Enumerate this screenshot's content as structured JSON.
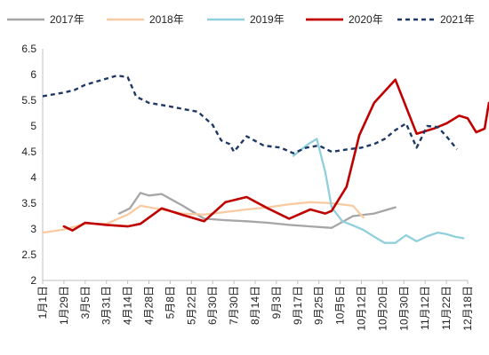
{
  "chart_data": {
    "type": "line",
    "title": "",
    "xlabel": "",
    "ylabel": "",
    "ylim": [
      2,
      6.5
    ],
    "yticks": [
      "6.5",
      "6",
      "5.5",
      "5",
      "4.5",
      "4",
      "3.5",
      "3",
      "2.5",
      "2"
    ],
    "categories": [
      "1月1日",
      "1月29日",
      "3月5日",
      "3月31日",
      "4月14日",
      "4月28日",
      "5月8日",
      "5月22日",
      "6月30日",
      "7月30日",
      "8月14日",
      "9月3日",
      "9月17日",
      "9月25日",
      "10月5日",
      "10月12日",
      "10月20日",
      "10月30日",
      "11月12日",
      "11月22日",
      "12月18日"
    ],
    "grid": false,
    "legend_position": "top",
    "series": [
      {
        "name": "2017年",
        "color": "#a6a6a6",
        "dash": "solid",
        "x": [
          3.6,
          4.1,
          4.6,
          5.0,
          5.6,
          6.6,
          7.6,
          8.6,
          9.6,
          10.6,
          11.6,
          12.6,
          13.6,
          14.6,
          15.6,
          16.6
        ],
        "y": [
          3.3,
          3.4,
          3.7,
          3.65,
          3.68,
          3.45,
          3.2,
          3.17,
          3.15,
          3.12,
          3.08,
          3.05,
          3.02,
          3.25,
          3.3,
          3.42
        ]
      },
      {
        "name": "2018年",
        "color": "#f8cba3",
        "dash": "solid",
        "x": [
          0.0,
          1.0,
          2.0,
          3.0,
          4.0,
          4.6,
          5.6,
          6.6,
          7.6,
          8.6,
          9.6,
          10.6,
          11.6,
          12.6,
          13.6,
          14.6,
          15.1
        ],
        "y": [
          2.93,
          2.99,
          3.1,
          3.1,
          3.28,
          3.45,
          3.38,
          3.3,
          3.28,
          3.33,
          3.38,
          3.42,
          3.48,
          3.52,
          3.5,
          3.45,
          3.22
        ]
      },
      {
        "name": "2019年",
        "color": "#90cfdc",
        "dash": "solid",
        "x": [
          11.8,
          12.5,
          12.9,
          13.3,
          13.6,
          14.1,
          14.6,
          15.1,
          15.6,
          16.1,
          16.6,
          17.1,
          17.6,
          18.1,
          18.6,
          19.0,
          19.4,
          19.8
        ],
        "y": [
          4.42,
          4.65,
          4.75,
          4.1,
          3.42,
          3.15,
          3.07,
          2.98,
          2.85,
          2.73,
          2.73,
          2.88,
          2.76,
          2.86,
          2.93,
          2.9,
          2.85,
          2.82
        ]
      },
      {
        "name": "2020年",
        "color": "#c00000",
        "dash": "solid",
        "x": [
          1.0,
          1.4,
          2.0,
          3.0,
          4.0,
          4.6,
          5.6,
          6.0,
          6.6,
          7.6,
          8.6,
          9.6,
          10.6,
          11.6,
          12.6,
          13.3,
          13.6,
          14.3,
          14.9,
          15.6,
          16.6,
          17.6,
          18.4,
          19.0,
          19.6,
          20.0,
          20.4,
          20.8,
          21.0,
          21.3
        ],
        "y": [
          3.05,
          2.97,
          3.12,
          3.08,
          3.05,
          3.1,
          3.4,
          3.35,
          3.27,
          3.15,
          3.52,
          3.62,
          3.4,
          3.2,
          3.38,
          3.3,
          3.35,
          3.82,
          4.82,
          5.45,
          5.9,
          4.85,
          4.95,
          5.05,
          5.2,
          5.15,
          4.88,
          4.95,
          5.45,
          5.43
        ]
      },
      {
        "name": "2021年",
        "color": "#1f3864",
        "dash": "dashed",
        "x": [
          0.0,
          1.0,
          1.5,
          2.0,
          3.0,
          3.5,
          4.0,
          4.4,
          5.0,
          6.0,
          7.0,
          7.3,
          8.0,
          8.4,
          8.8,
          9.0,
          9.6,
          10.4,
          11.2,
          11.8,
          12.4,
          13.0,
          13.6,
          14.4,
          15.0,
          15.6,
          16.1,
          16.6,
          17.1,
          17.6,
          18.1,
          18.6,
          19.0,
          19.5
        ],
        "y": [
          5.58,
          5.65,
          5.7,
          5.8,
          5.92,
          5.98,
          5.95,
          5.57,
          5.45,
          5.38,
          5.3,
          5.28,
          5.02,
          4.72,
          4.65,
          4.5,
          4.8,
          4.62,
          4.58,
          4.47,
          4.58,
          4.62,
          4.5,
          4.55,
          4.58,
          4.65,
          4.75,
          4.92,
          5.05,
          4.58,
          5.0,
          4.98,
          4.8,
          4.55
        ]
      }
    ]
  }
}
